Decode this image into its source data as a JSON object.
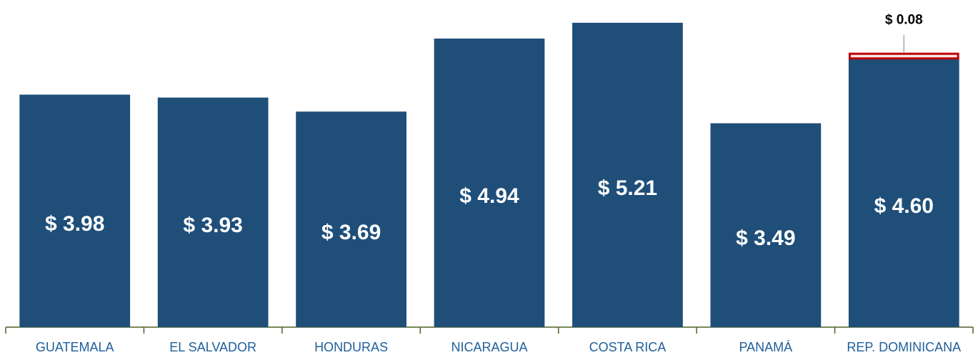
{
  "chart_data": {
    "type": "bar",
    "stacked": true,
    "categories": [
      "GUATEMALA",
      "EL SALVADOR",
      "HONDURAS",
      "NICARAGUA",
      "COSTA RICA",
      "PANAMÁ",
      "REP. DOMINICANA"
    ],
    "series": [
      {
        "color": "#1f4e79",
        "values": [
          3.98,
          3.93,
          3.69,
          4.94,
          5.21,
          3.49,
          4.6
        ],
        "value_labels": [
          "$ 3.98",
          "$ 3.93",
          "$ 3.69",
          "$ 4.94",
          "$ 5.21",
          "$ 3.49",
          "$ 4.60"
        ]
      },
      {
        "color": "#c00000",
        "values": [
          null,
          null,
          null,
          null,
          null,
          null,
          0.08
        ],
        "value_labels": [
          null,
          null,
          null,
          null,
          null,
          null,
          "$ 0.08"
        ]
      }
    ],
    "ylim": [
      0,
      5.6
    ],
    "axis_color": "#4f6228"
  }
}
